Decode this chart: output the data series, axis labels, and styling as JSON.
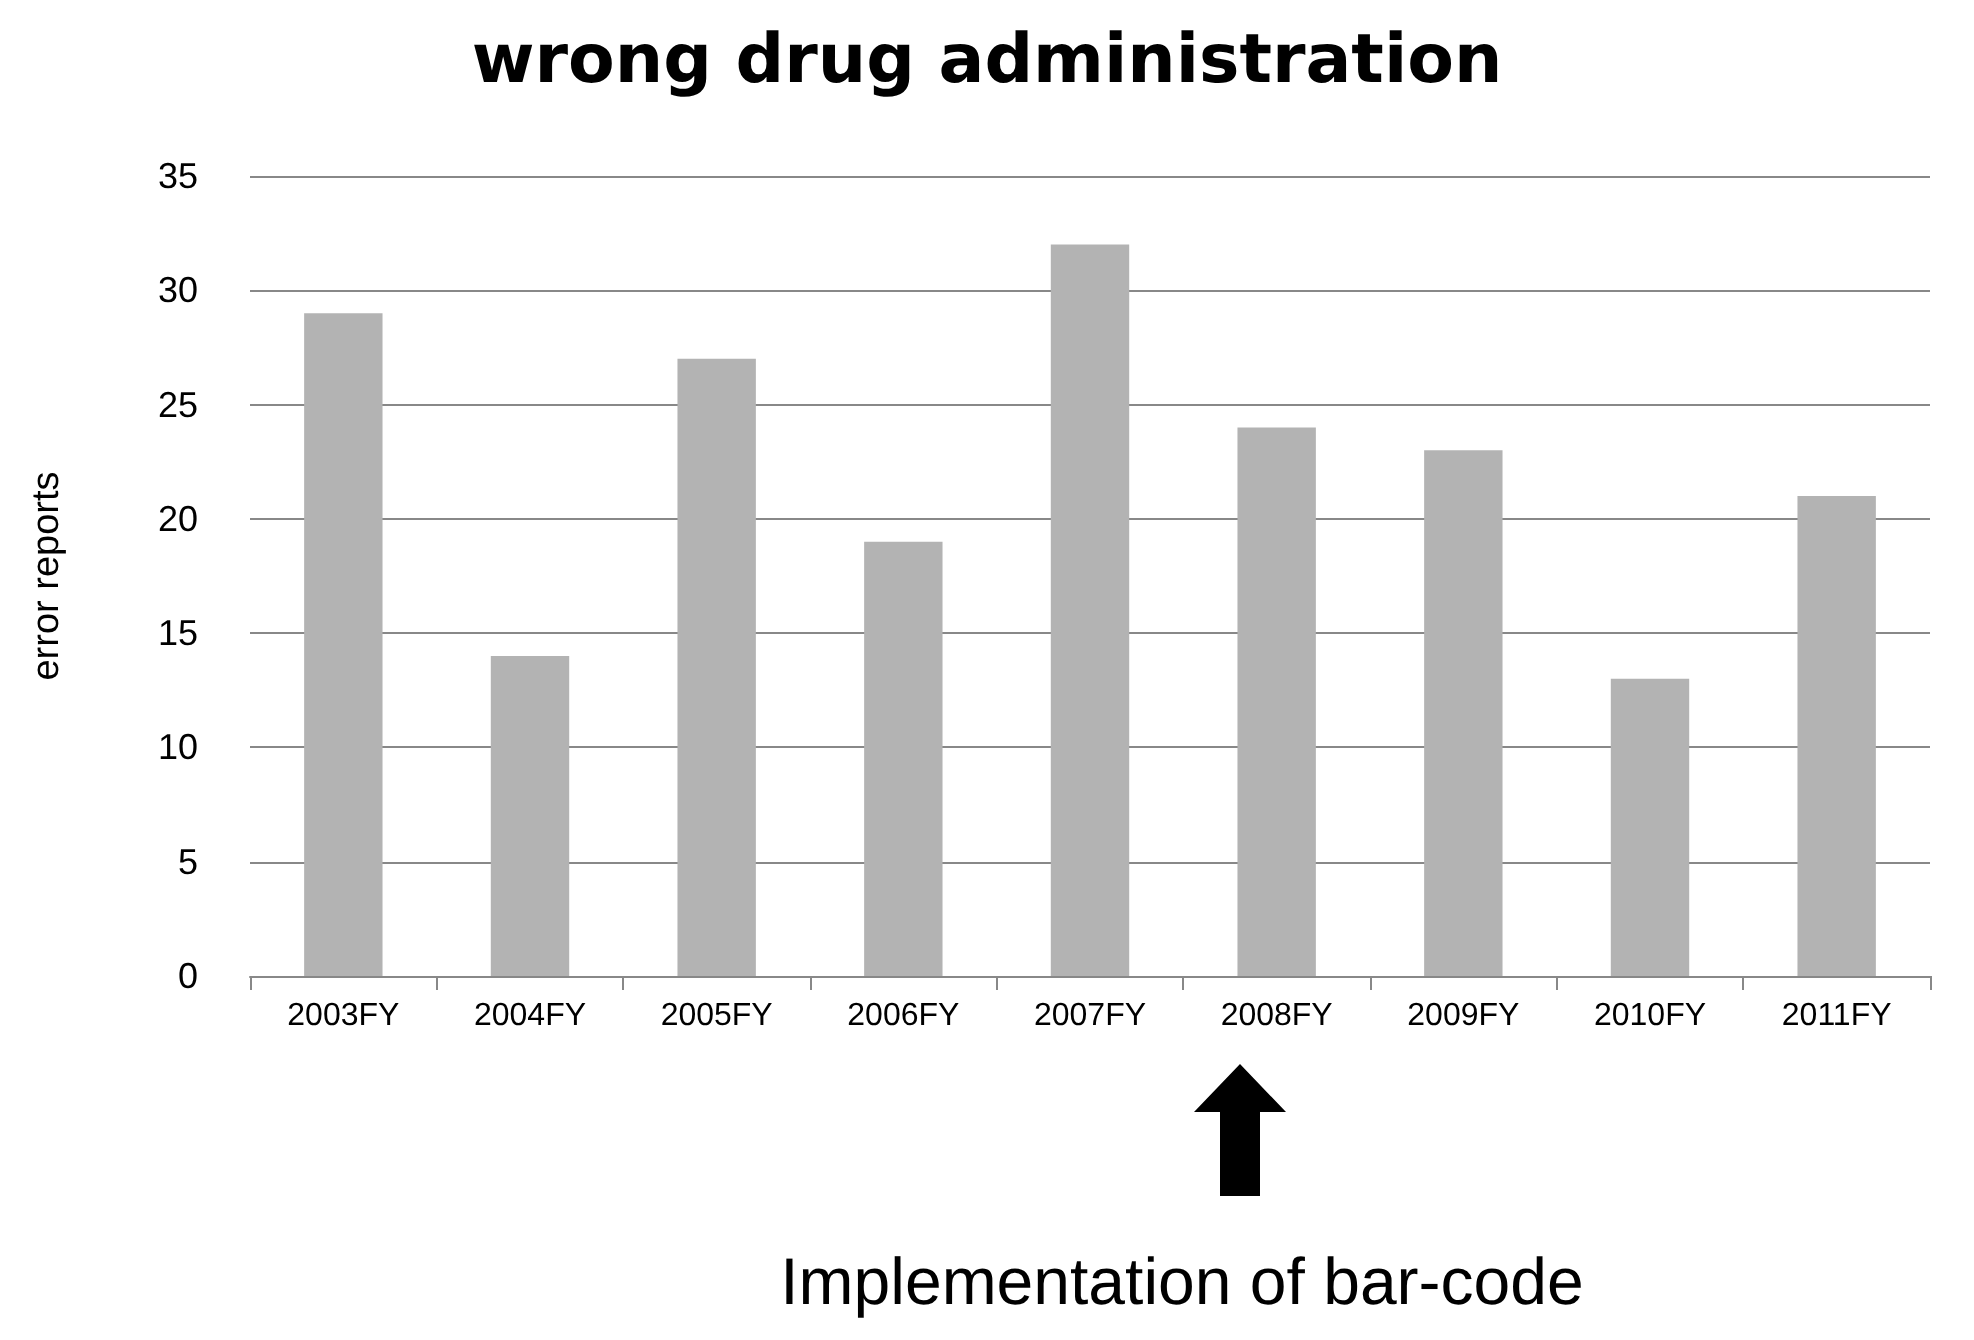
{
  "chart_data": {
    "type": "bar",
    "title": "wrong drug administration",
    "ylabel": "error reports",
    "categories": [
      "2003FY",
      "2004FY",
      "2005FY",
      "2006FY",
      "2007FY",
      "2008FY",
      "2009FY",
      "2010FY",
      "2011FY"
    ],
    "values": [
      29,
      14,
      27,
      19,
      32,
      24,
      23,
      13,
      21
    ],
    "color": "#b3b3b3",
    "ylim": [
      0,
      35
    ],
    "yticks": [
      0,
      5,
      10,
      15,
      20,
      25,
      30,
      35
    ],
    "grid": "y",
    "annotations": [
      "Implementation of bar-code"
    ]
  }
}
